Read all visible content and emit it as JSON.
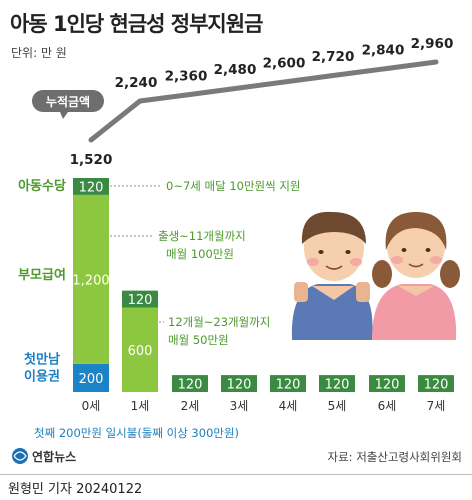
{
  "title": "아동 1인당 현금성 정부지원금",
  "unit_label": "단위: 만 원",
  "cumulative_badge": "누적금액",
  "source": "자료: 저출산고령사회위원회",
  "logo_text": "연합뉴스",
  "credit": "원형민 기자  20240122",
  "footnote": "첫째 200만원 일시불(둘째 이상 300만원)",
  "colors": {
    "child_allowance": "#3a8a41",
    "parent_benefit": "#8dc63f",
    "first_meeting": "#1b83c6",
    "line": "#7a7a7a",
    "text_green": "#4d9a2c",
    "text_blue": "#1b7fc1"
  },
  "annotations": [
    "0~7세 매달 10만원씩 지원",
    "출생~11개월까지",
    "매월 100만원",
    "12개월~23개월까지",
    "매월 50만원"
  ],
  "chart_data": [
    {
      "type": "line",
      "title": "",
      "categories": [
        "0세",
        "1세",
        "2세",
        "3세",
        "4세",
        "5세",
        "6세",
        "7세"
      ],
      "series": [
        {
          "name": "누적금액",
          "values": [
            1520,
            2240,
            2360,
            2480,
            2600,
            2720,
            2840,
            2960
          ]
        }
      ],
      "value_labels": [
        "1,520",
        "2,240",
        "2,360",
        "2,480",
        "2,600",
        "2,720",
        "2,840",
        "2,960"
      ]
    },
    {
      "type": "bar",
      "stacked": true,
      "categories": [
        "0세",
        "1세",
        "2세",
        "3세",
        "4세",
        "5세",
        "6세",
        "7세"
      ],
      "series": [
        {
          "name": "첫만남 이용권",
          "values": [
            200,
            0,
            0,
            0,
            0,
            0,
            0,
            0
          ]
        },
        {
          "name": "부모급여",
          "values": [
            1200,
            600,
            0,
            0,
            0,
            0,
            0,
            0
          ]
        },
        {
          "name": "아동수당",
          "values": [
            120,
            120,
            120,
            120,
            120,
            120,
            120,
            120
          ]
        }
      ],
      "series_labels": [
        "첫만남\n이용권",
        "부모급여",
        "아동수당"
      ],
      "ylim": [
        0,
        1520
      ],
      "grid": false
    }
  ]
}
